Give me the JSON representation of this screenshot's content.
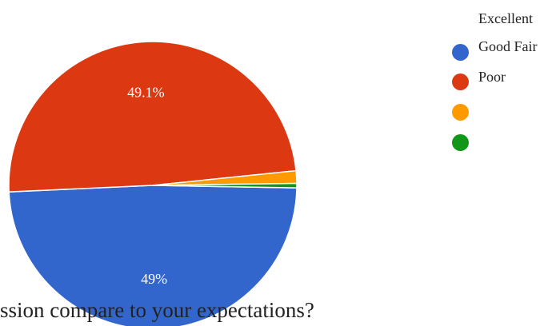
{
  "question": {
    "text": "ssion compare to your expectations?"
  },
  "legend": {
    "title": "Excellent",
    "items": [
      {
        "label": "Good Fair",
        "color": "#3366cc"
      },
      {
        "label": "Poor",
        "color": "#dc3912"
      },
      {
        "label": "",
        "color": "#ff9900"
      },
      {
        "label": "",
        "color": "#109618"
      }
    ]
  },
  "chart_data": {
    "type": "pie",
    "slices": [
      {
        "value": 49,
        "color": "#3366cc",
        "data_label": "49%"
      },
      {
        "value": 49.1,
        "color": "#dc3912",
        "data_label": "49.1%"
      },
      {
        "value": 1.4,
        "color": "#ff9900",
        "data_label": ""
      },
      {
        "value": 0.5,
        "color": "#109618",
        "data_label": ""
      }
    ]
  }
}
